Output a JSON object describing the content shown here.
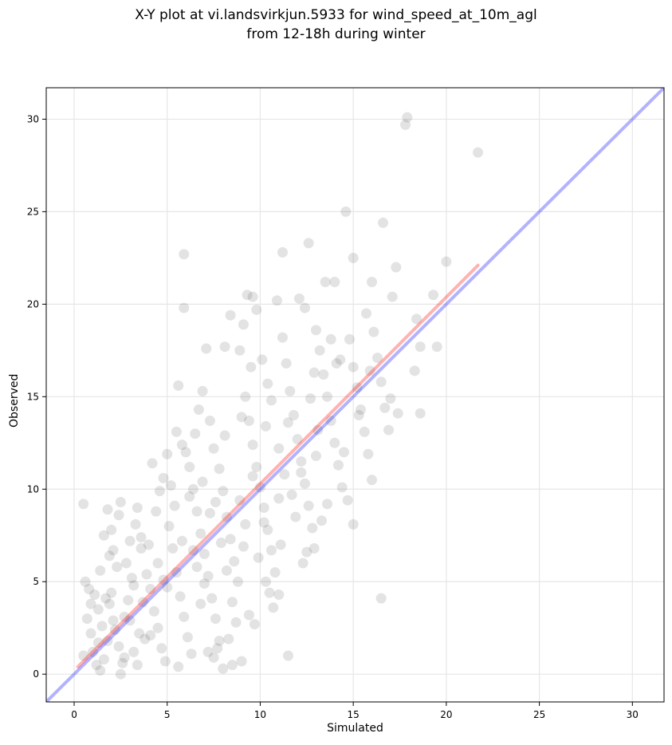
{
  "chart_data": {
    "type": "scatter",
    "title_line1": "X-Y plot at vi.landsvirkjun.5933 for wind_speed_at_10m_agl",
    "title_line2": "from 12-18h during winter",
    "xlabel": "Simulated",
    "ylabel": "Observed",
    "xlim": [
      -1.5,
      31.7
    ],
    "ylim": [
      -1.5,
      31.7
    ],
    "xticks": [
      0,
      5,
      10,
      15,
      20,
      25,
      30
    ],
    "yticks": [
      0,
      5,
      10,
      15,
      20,
      25,
      30
    ],
    "grid": true,
    "point_color": "#404040",
    "point_alpha": 0.15,
    "identity_line": {
      "x": [
        -1.5,
        31.7
      ],
      "y": [
        -1.5,
        31.7
      ],
      "color": "#0000ff",
      "alpha": 0.3
    },
    "fit_line": {
      "x": [
        0.2,
        21.7
      ],
      "y": [
        0.4,
        22.1
      ],
      "color": "#ff0000",
      "alpha": 0.3
    },
    "points": [
      [
        0.5,
        9.2
      ],
      [
        0.6,
        5.0
      ],
      [
        0.8,
        4.6
      ],
      [
        0.7,
        3.0
      ],
      [
        0.9,
        2.2
      ],
      [
        1.0,
        1.2
      ],
      [
        0.5,
        1.0
      ],
      [
        1.2,
        0.5
      ],
      [
        1.4,
        0.2
      ],
      [
        1.6,
        0.8
      ],
      [
        1.1,
        4.3
      ],
      [
        1.3,
        3.5
      ],
      [
        1.5,
        2.6
      ],
      [
        1.7,
        4.1
      ],
      [
        1.9,
        3.8
      ],
      [
        2.0,
        4.4
      ],
      [
        1.8,
        1.8
      ],
      [
        2.2,
        2.4
      ],
      [
        2.4,
        1.5
      ],
      [
        2.6,
        0.6
      ],
      [
        2.5,
        0.0
      ],
      [
        2.7,
        3.1
      ],
      [
        2.9,
        4.0
      ],
      [
        3.0,
        2.9
      ],
      [
        3.2,
        1.2
      ],
      [
        3.4,
        0.5
      ],
      [
        3.1,
        5.2
      ],
      [
        2.8,
        6.0
      ],
      [
        2.3,
        5.8
      ],
      [
        1.9,
        6.4
      ],
      [
        1.6,
        7.5
      ],
      [
        2.0,
        7.8
      ],
      [
        2.4,
        8.6
      ],
      [
        1.8,
        8.9
      ],
      [
        2.5,
        9.3
      ],
      [
        3.0,
        7.2
      ],
      [
        3.3,
        8.1
      ],
      [
        3.6,
        6.8
      ],
      [
        3.9,
        5.4
      ],
      [
        4.1,
        4.6
      ],
      [
        4.3,
        3.4
      ],
      [
        4.5,
        2.5
      ],
      [
        4.7,
        1.4
      ],
      [
        4.9,
        0.7
      ],
      [
        3.7,
        3.9
      ],
      [
        3.5,
        2.2
      ],
      [
        4.0,
        7.0
      ],
      [
        4.4,
        8.8
      ],
      [
        4.6,
        9.9
      ],
      [
        4.2,
        11.4
      ],
      [
        4.8,
        10.6
      ],
      [
        5.0,
        11.9
      ],
      [
        5.2,
        10.2
      ],
      [
        5.4,
        9.1
      ],
      [
        5.1,
        8.0
      ],
      [
        5.3,
        6.8
      ],
      [
        5.5,
        5.5
      ],
      [
        5.7,
        4.2
      ],
      [
        5.9,
        3.1
      ],
      [
        6.1,
        2.0
      ],
      [
        6.3,
        1.1
      ],
      [
        5.6,
        0.4
      ],
      [
        5.8,
        12.4
      ],
      [
        6.0,
        12.0
      ],
      [
        5.5,
        13.1
      ],
      [
        5.6,
        15.6
      ],
      [
        5.9,
        19.8
      ],
      [
        5.9,
        22.7
      ],
      [
        6.2,
        11.2
      ],
      [
        6.4,
        10.0
      ],
      [
        6.6,
        8.8
      ],
      [
        6.8,
        7.6
      ],
      [
        7.0,
        6.5
      ],
      [
        7.2,
        5.3
      ],
      [
        7.4,
        4.1
      ],
      [
        7.6,
        3.0
      ],
      [
        7.8,
        1.8
      ],
      [
        7.5,
        0.9
      ],
      [
        7.7,
        1.4
      ],
      [
        8.0,
        0.3
      ],
      [
        6.5,
        13.0
      ],
      [
        6.7,
        14.3
      ],
      [
        6.9,
        15.3
      ],
      [
        7.1,
        17.6
      ],
      [
        7.3,
        13.7
      ],
      [
        7.5,
        12.2
      ],
      [
        7.8,
        11.1
      ],
      [
        8.0,
        9.9
      ],
      [
        8.2,
        8.5
      ],
      [
        8.4,
        7.3
      ],
      [
        8.6,
        6.1
      ],
      [
        8.8,
        5.0
      ],
      [
        8.5,
        3.9
      ],
      [
        8.7,
        2.8
      ],
      [
        8.3,
        1.9
      ],
      [
        9.0,
        0.7
      ],
      [
        8.1,
        17.7
      ],
      [
        8.4,
        19.4
      ],
      [
        8.9,
        17.5
      ],
      [
        9.1,
        18.9
      ],
      [
        9.3,
        20.5
      ],
      [
        9.6,
        20.4
      ],
      [
        9.8,
        19.7
      ],
      [
        9.5,
        16.6
      ],
      [
        9.2,
        15.0
      ],
      [
        9.4,
        13.7
      ],
      [
        9.6,
        12.4
      ],
      [
        9.8,
        11.2
      ],
      [
        10.0,
        10.1
      ],
      [
        10.2,
        9.0
      ],
      [
        10.4,
        7.8
      ],
      [
        10.6,
        6.7
      ],
      [
        10.8,
        5.5
      ],
      [
        10.5,
        4.4
      ],
      [
        10.7,
        3.6
      ],
      [
        11.0,
        4.3
      ],
      [
        9.7,
        2.7
      ],
      [
        9.4,
        3.2
      ],
      [
        11.5,
        1.0
      ],
      [
        11.2,
        22.8
      ],
      [
        10.9,
        20.2
      ],
      [
        11.2,
        18.2
      ],
      [
        11.4,
        16.8
      ],
      [
        11.6,
        15.3
      ],
      [
        11.8,
        14.0
      ],
      [
        12.0,
        12.7
      ],
      [
        12.2,
        11.5
      ],
      [
        12.4,
        10.3
      ],
      [
        12.6,
        9.1
      ],
      [
        12.8,
        7.9
      ],
      [
        12.5,
        6.6
      ],
      [
        12.3,
        6.0
      ],
      [
        12.9,
        6.8
      ],
      [
        12.1,
        20.3
      ],
      [
        12.6,
        23.3
      ],
      [
        12.4,
        19.8
      ],
      [
        13.0,
        18.6
      ],
      [
        13.2,
        17.5
      ],
      [
        13.4,
        16.2
      ],
      [
        13.6,
        15.0
      ],
      [
        13.8,
        13.7
      ],
      [
        14.0,
        12.5
      ],
      [
        14.2,
        11.3
      ],
      [
        14.4,
        10.1
      ],
      [
        13.6,
        9.2
      ],
      [
        13.3,
        8.3
      ],
      [
        13.5,
        21.2
      ],
      [
        14.0,
        21.2
      ],
      [
        13.8,
        18.1
      ],
      [
        14.3,
        17.0
      ],
      [
        14.6,
        25.0
      ],
      [
        14.8,
        18.1
      ],
      [
        15.0,
        16.6
      ],
      [
        15.2,
        15.5
      ],
      [
        15.4,
        14.3
      ],
      [
        15.6,
        13.1
      ],
      [
        15.8,
        11.9
      ],
      [
        16.0,
        10.5
      ],
      [
        15.0,
        8.1
      ],
      [
        14.7,
        9.4
      ],
      [
        15.0,
        22.5
      ],
      [
        15.7,
        19.5
      ],
      [
        16.0,
        21.2
      ],
      [
        16.1,
        18.5
      ],
      [
        16.3,
        17.1
      ],
      [
        16.5,
        15.8
      ],
      [
        16.7,
        14.4
      ],
      [
        16.9,
        13.2
      ],
      [
        16.5,
        4.1
      ],
      [
        16.6,
        24.4
      ],
      [
        17.1,
        20.4
      ],
      [
        17.3,
        22.0
      ],
      [
        17.0,
        14.9
      ],
      [
        17.4,
        14.1
      ],
      [
        17.8,
        29.7
      ],
      [
        17.9,
        30.1
      ],
      [
        18.3,
        16.4
      ],
      [
        18.4,
        19.2
      ],
      [
        18.6,
        17.7
      ],
      [
        18.6,
        14.1
      ],
      [
        19.3,
        20.5
      ],
      [
        19.5,
        17.7
      ],
      [
        20.0,
        22.3
      ],
      [
        21.7,
        28.2
      ],
      [
        10.1,
        17.0
      ],
      [
        10.4,
        15.7
      ],
      [
        10.3,
        13.4
      ],
      [
        11.0,
        12.2
      ],
      [
        11.3,
        10.8
      ],
      [
        11.7,
        9.7
      ],
      [
        6.2,
        9.6
      ],
      [
        6.6,
        5.8
      ],
      [
        7.3,
        8.7
      ],
      [
        7.9,
        7.1
      ],
      [
        8.9,
        9.4
      ],
      [
        9.2,
        8.1
      ],
      [
        9.9,
        6.3
      ],
      [
        10.3,
        5.0
      ],
      [
        11.1,
        7.0
      ],
      [
        11.9,
        8.5
      ],
      [
        3.2,
        4.8
      ],
      [
        3.8,
        1.9
      ],
      [
        2.1,
        2.9
      ],
      [
        1.4,
        5.6
      ],
      [
        4.5,
        6.0
      ],
      [
        5.0,
        4.7
      ],
      [
        6.9,
        10.4
      ],
      [
        8.1,
        12.9
      ],
      [
        9.0,
        13.9
      ],
      [
        10.6,
        14.8
      ],
      [
        12.7,
        14.9
      ],
      [
        13.1,
        13.2
      ],
      [
        14.5,
        12.0
      ],
      [
        15.3,
        14.0
      ],
      [
        3.4,
        9.0
      ],
      [
        4.1,
        2.1
      ],
      [
        2.7,
        0.9
      ],
      [
        7.2,
        1.2
      ],
      [
        8.5,
        0.5
      ],
      [
        6.8,
        3.8
      ],
      [
        5.8,
        7.2
      ],
      [
        7.6,
        9.3
      ],
      [
        9.6,
        10.7
      ],
      [
        11.5,
        13.6
      ],
      [
        12.9,
        16.3
      ],
      [
        14.1,
        16.8
      ],
      [
        15.9,
        16.4
      ],
      [
        0.9,
        3.8
      ],
      [
        1.3,
        1.7
      ],
      [
        2.1,
        6.7
      ],
      [
        3.6,
        7.4
      ],
      [
        4.8,
        5.1
      ],
      [
        6.4,
        6.7
      ],
      [
        7.0,
        4.9
      ],
      [
        8.2,
        5.6
      ],
      [
        9.1,
        6.9
      ],
      [
        10.2,
        8.2
      ],
      [
        11.0,
        9.5
      ],
      [
        12.2,
        10.9
      ],
      [
        13.0,
        11.8
      ]
    ]
  }
}
